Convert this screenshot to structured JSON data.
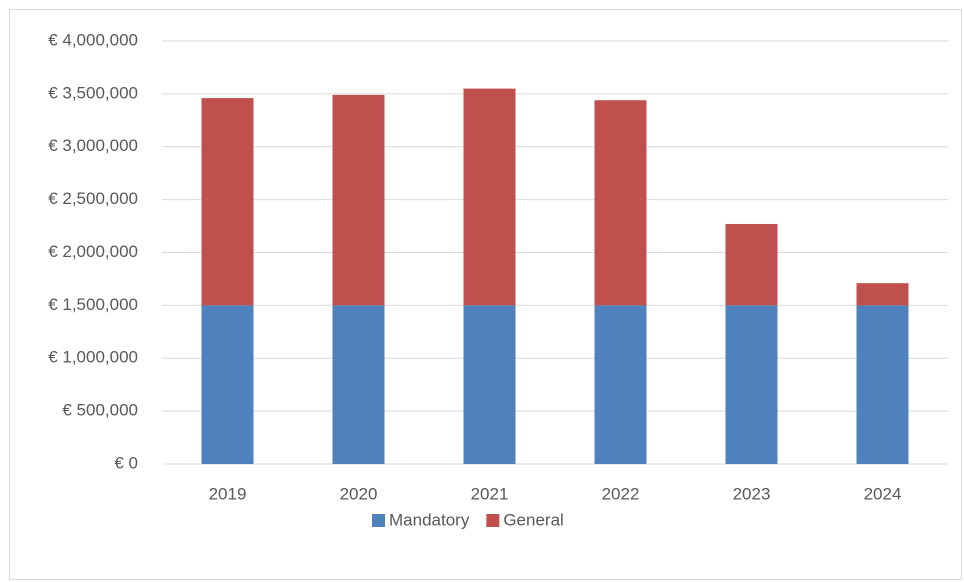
{
  "chart_data": {
    "type": "stacked_bar",
    "categories": [
      "2019",
      "2020",
      "2021",
      "2022",
      "2023",
      "2024"
    ],
    "series": [
      {
        "name": "Mandatory",
        "color": "#4f81bd",
        "values": [
          1500000,
          1500000,
          1500000,
          1500000,
          1500000,
          1500000
        ]
      },
      {
        "name": "General",
        "color": "#c0504d",
        "values": [
          1960000,
          1990000,
          2050000,
          1940000,
          770000,
          210000
        ]
      }
    ],
    "ylim": [
      0,
      4000000
    ],
    "yticks": [
      {
        "value": 0,
        "label": "€ 0"
      },
      {
        "value": 500000,
        "label": "€ 500,000"
      },
      {
        "value": 1000000,
        "label": "€ 1,000,000"
      },
      {
        "value": 1500000,
        "label": "€ 1,500,000"
      },
      {
        "value": 2000000,
        "label": "€ 2,000,000"
      },
      {
        "value": 2500000,
        "label": "€ 2,500,000"
      },
      {
        "value": 3000000,
        "label": "€ 3,000,000"
      },
      {
        "value": 3500000,
        "label": "€ 3,500,000"
      },
      {
        "value": 4000000,
        "label": "€ 4,000,000"
      }
    ],
    "grid": true,
    "legend": "bottom"
  }
}
